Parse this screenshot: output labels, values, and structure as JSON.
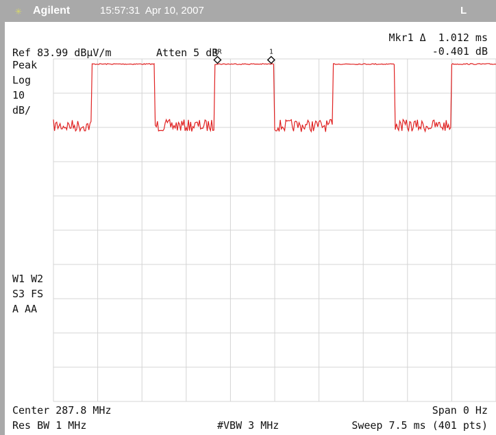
{
  "header": {
    "brand": "Agilent",
    "time": "15:57:31",
    "date": "Apr 10, 2007",
    "mode_indicator": "L"
  },
  "marker": {
    "label": "Mkr1 Δ",
    "time_value": "1.012 ms",
    "amplitude_value": "-0.401 dB",
    "ref_marker_label": "1R",
    "delta_marker_label": "1"
  },
  "settings": {
    "ref_level": "Ref 83.99 dBμV/m",
    "attenuation": "Atten 5 dB",
    "detector": "Peak",
    "scale_type": "Log",
    "scale_value": "10",
    "scale_unit": "dB/"
  },
  "trace_annotations": {
    "line1": "W1 W2",
    "line2": "S3 FS",
    "line3": "A  AA"
  },
  "footer": {
    "center": "Center 287.8 MHz",
    "span": "Span 0 Hz",
    "res_bw": "Res BW 1 MHz",
    "vbw": "#VBW 3 MHz",
    "sweep": "Sweep 7.5 ms (401 pts)"
  },
  "colors": {
    "trace": "#e02020",
    "grid": "#d4d4d4",
    "frame": "#a9a9a9"
  },
  "chart_data": {
    "type": "line",
    "sweep_time_ms": 7.5,
    "y_divisions": 10,
    "db_per_division": 10,
    "points": 401,
    "high_level_div_below_ref": 0.15,
    "low_level_div_below_ref": 1.95,
    "transitions_ms": [
      0.65,
      1.71,
      2.73,
      3.74,
      4.74,
      5.78,
      6.74
    ],
    "starts_low": true
  }
}
